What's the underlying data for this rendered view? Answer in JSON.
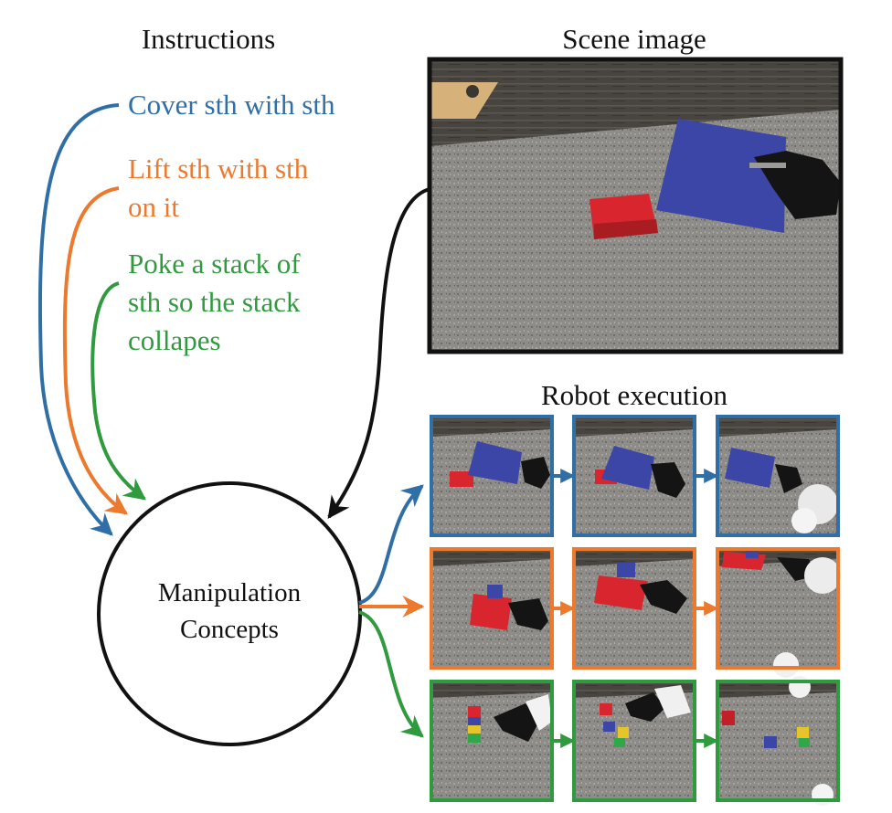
{
  "headers": {
    "instructions": "Instructions",
    "scene_image": "Scene image",
    "robot_execution": "Robot execution"
  },
  "instructions": [
    {
      "lines": [
        "Cover sth with sth"
      ],
      "color": "#2f6fa6"
    },
    {
      "lines": [
        "Lift sth with sth",
        "on it"
      ],
      "color": "#ec7a2e"
    },
    {
      "lines": [
        "Poke a stack of",
        "sth so the stack",
        "collapes"
      ],
      "color": "#2f9b3e"
    }
  ],
  "concept_node": {
    "lines": [
      "Manipulation",
      "Concepts"
    ]
  },
  "colors": {
    "blue": "#2f6fa6",
    "orange": "#ec7a2e",
    "green": "#2f9b3e",
    "black": "#111111",
    "table": "#8f8d88",
    "table_dark": "#6f6a63",
    "wood": "#4c4945"
  }
}
